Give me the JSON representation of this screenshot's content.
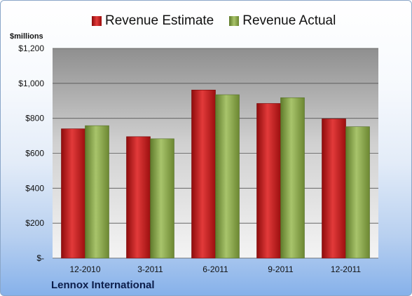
{
  "chart_data": {
    "type": "bar",
    "title": "",
    "ylabel": "$millions",
    "xlabel": "",
    "ylim": [
      0,
      1200
    ],
    "yticks": [
      0,
      200,
      400,
      600,
      800,
      1000,
      1200
    ],
    "ytick_labels": [
      "$-",
      "$200",
      "$400",
      "$600",
      "$800",
      "$1,000",
      "$1,200"
    ],
    "categories": [
      "12-2010",
      "3-2011",
      "6-2011",
      "9-2011",
      "12-2011"
    ],
    "series": [
      {
        "name": "Revenue Estimate",
        "values": [
          740,
          695,
          962,
          885,
          797
        ],
        "color": "#c41e1e"
      },
      {
        "name": "Revenue Actual",
        "values": [
          758,
          683,
          935,
          918,
          752
        ],
        "color": "#8daa4a"
      }
    ],
    "legend_position": "top",
    "grid": true,
    "footer": "Lennox International"
  }
}
